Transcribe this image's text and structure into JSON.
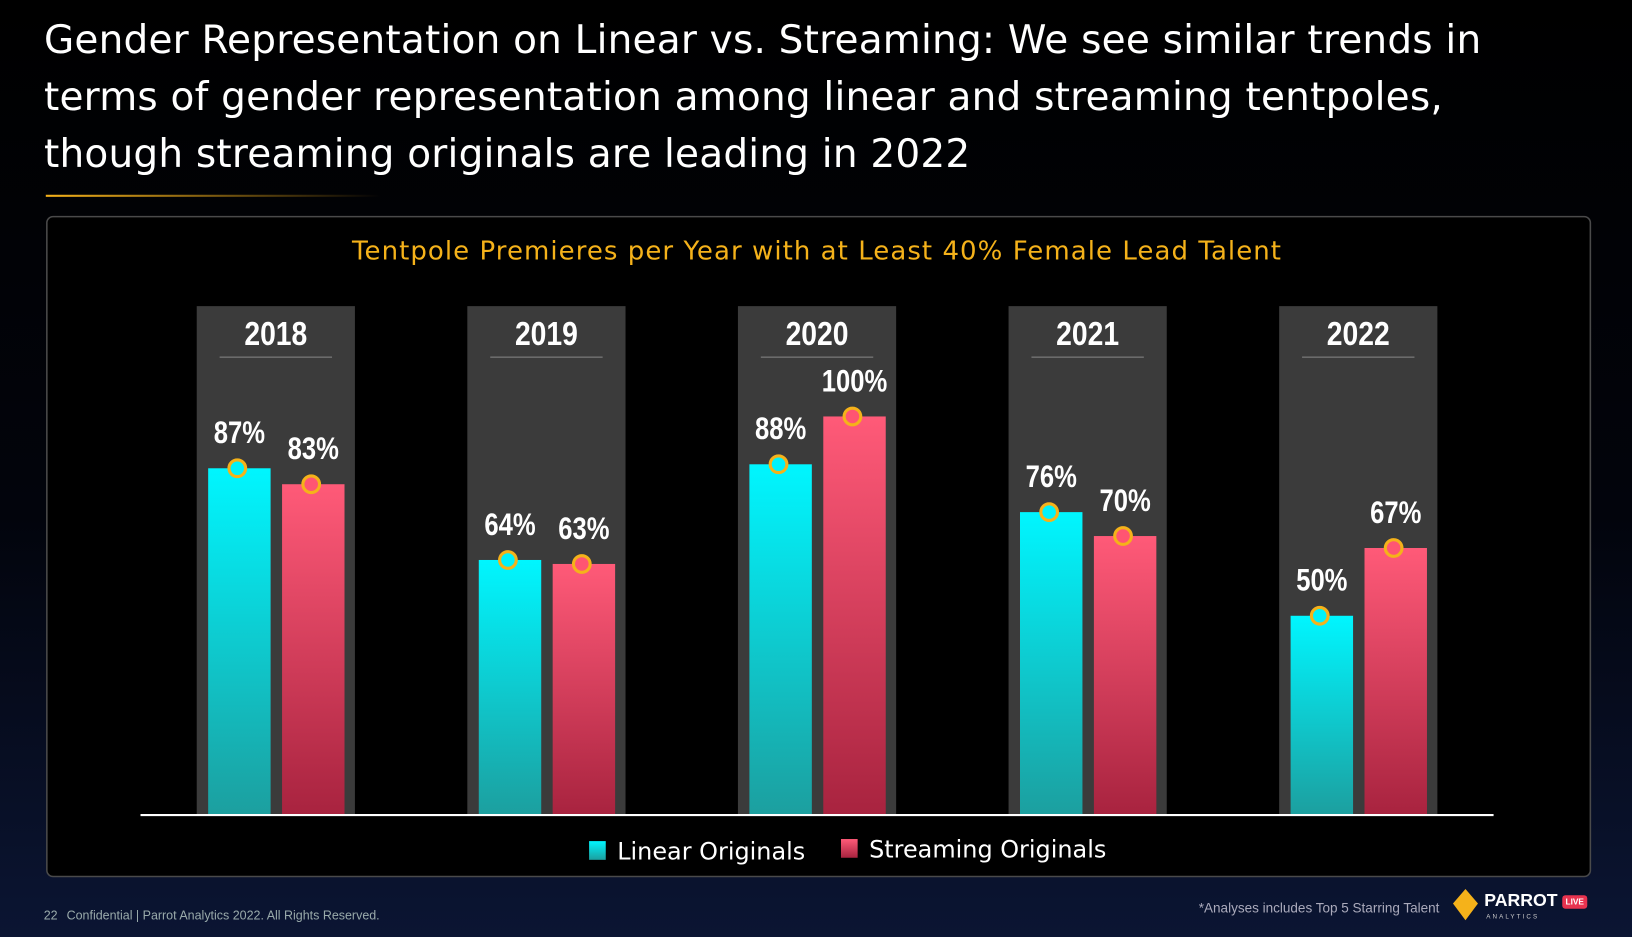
{
  "title": "Gender Representation on Linear vs. Streaming: We see similar trends in terms of gender representation among linear and streaming tentpoles, though streaming originals are leading in 2022",
  "chart_data": {
    "type": "bar",
    "title": "Tentpole Premieres per Year with at Least 40% Female Lead Talent",
    "categories": [
      "2018",
      "2019",
      "2020",
      "2021",
      "2022"
    ],
    "series": [
      {
        "name": "Linear Originals",
        "color": "#00f2fa",
        "values": [
          87,
          64,
          88,
          76,
          50
        ],
        "value_labels": [
          "87%",
          "64%",
          "88%",
          "76%",
          "50%"
        ]
      },
      {
        "name": "Streaming Originals",
        "color": "#ff5572",
        "values": [
          83,
          63,
          100,
          70,
          67
        ],
        "value_labels": [
          "83%",
          "63%",
          "100%",
          "70%",
          "67%"
        ]
      }
    ],
    "ylim": [
      0,
      100
    ]
  },
  "footer": {
    "page": "22",
    "text": "Confidential | Parrot Analytics 2022. All Rights Reserved.",
    "note": "*Analyses includes Top 5 Starring Talent"
  },
  "logo": {
    "name": "PARROT",
    "sub": "ANALYTICS",
    "badge": "LIVE"
  }
}
